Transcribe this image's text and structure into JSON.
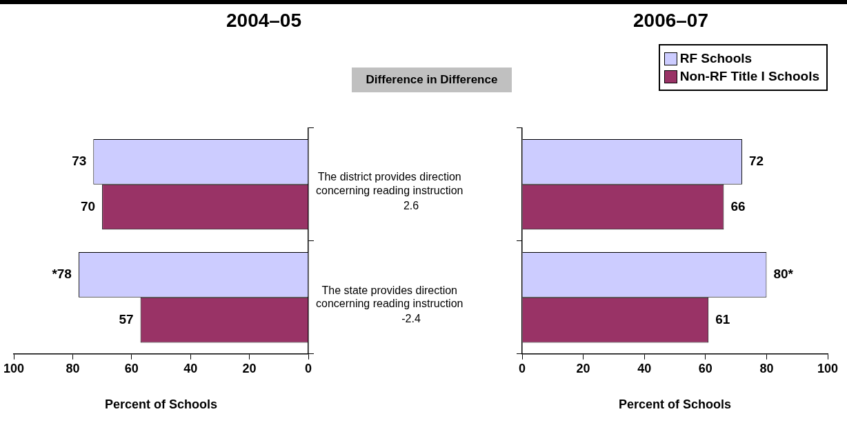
{
  "chart_data": [
    {
      "type": "bar",
      "orientation": "horizontal",
      "title": "2004–05",
      "xlabel": "Percent of Schools",
      "categories": [
        "The district provides direction concerning reading instruction",
        "The state provides direction concerning reading instruction"
      ],
      "series": [
        {
          "color": "#ccccff",
          "values": [
            73,
            78
          ],
          "value_labels": [
            "73",
            "*78"
          ]
        },
        {
          "color": "#993366",
          "values": [
            70,
            57
          ],
          "value_labels": [
            "70",
            "57"
          ]
        }
      ],
      "xlim": [
        100,
        0
      ],
      "xticks": [
        100,
        80,
        60,
        40,
        20,
        0
      ],
      "legend": false,
      "annotations": [
        "Difference in Difference",
        "2.6",
        "-2.4"
      ]
    },
    {
      "type": "bar",
      "orientation": "horizontal",
      "title": "2006–07",
      "xlabel": "Percent of Schools",
      "categories": [
        null,
        null
      ],
      "series": [
        {
          "name": "RF Schools",
          "color": "#ccccff",
          "values": [
            72,
            80
          ],
          "value_labels": [
            "72",
            "80*"
          ]
        },
        {
          "name": "Non-RF Title I Schools",
          "color": "#993366",
          "values": [
            66,
            61
          ],
          "value_labels": [
            "66",
            "61"
          ]
        }
      ],
      "xlim": [
        0,
        100
      ],
      "xticks": [
        0,
        20,
        40,
        60,
        80,
        100
      ],
      "legend": "top right",
      "tick_labels": "x"
    }
  ]
}
